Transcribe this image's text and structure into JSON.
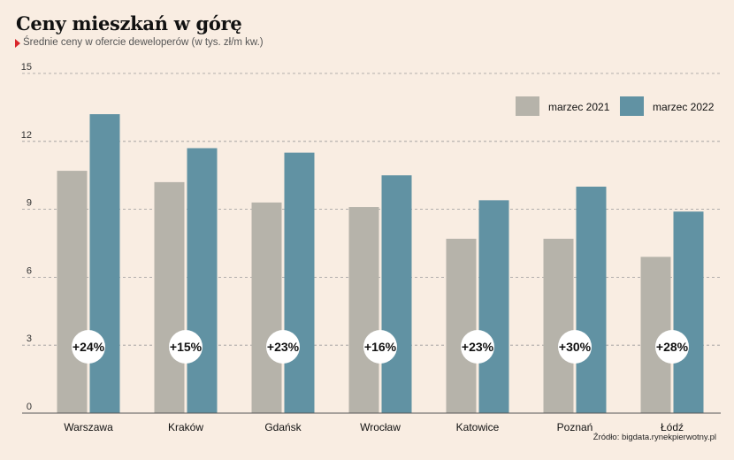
{
  "colors": {
    "background": "#f9ede2",
    "series_2021": "#b6b3aa",
    "series_2022": "#6192a3",
    "marker": "#d9262b"
  },
  "chart_data": {
    "type": "bar",
    "title": "Ceny mieszkań w górę",
    "subtitle": "Średnie ceny w ofercie deweloperów (w tys. zł/m kw.)",
    "categories": [
      "Warszawa",
      "Kraków",
      "Gdańsk",
      "Wrocław",
      "Katowice",
      "Poznań",
      "Łódź"
    ],
    "series": [
      {
        "name": "marzec 2021",
        "values": [
          10.7,
          10.2,
          9.3,
          9.1,
          7.7,
          7.7,
          6.9
        ]
      },
      {
        "name": "marzec 2022",
        "values": [
          13.2,
          11.7,
          11.5,
          10.5,
          9.4,
          10.0,
          8.9
        ]
      }
    ],
    "changes": [
      "+24%",
      "+15%",
      "+23%",
      "+16%",
      "+23%",
      "+30%",
      "+28%"
    ],
    "ylim": [
      0,
      15
    ],
    "yticks": [
      "0",
      "3",
      "6",
      "9",
      "12",
      "15"
    ],
    "grid": true,
    "legend_position": "top-right",
    "source": "Źródło: bigdata.rynekpierwotny.pl"
  }
}
